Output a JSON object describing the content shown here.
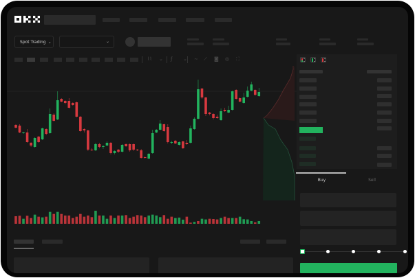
{
  "header": {
    "logo": "OKX",
    "nav_items": 5
  },
  "market_bar": {
    "mode_dropdown": "Spot Trading",
    "pair_dropdown": ""
  },
  "orderbook": {
    "view_icons": [
      "orderbook-both-icon",
      "orderbook-bids-icon",
      "orderbook-asks-icon"
    ]
  },
  "order_form": {
    "tabs": [
      {
        "label": "Buy",
        "active": true
      },
      {
        "label": "Sell",
        "active": false
      }
    ],
    "slider_percent": 0,
    "slider_stops": [
      0,
      25,
      50,
      75,
      100
    ]
  },
  "colors": {
    "up": "#22b35e",
    "down": "#d7393f",
    "background": "#181818",
    "panel": "#1d1d1d"
  },
  "chart_data": {
    "type": "candlestick",
    "title": "",
    "candles": [
      [
        119,
        120,
        114,
        115
      ],
      [
        118,
        120,
        107,
        108
      ],
      [
        107,
        109,
        106,
        108
      ],
      [
        108,
        113,
        93,
        94
      ],
      [
        93,
        94,
        87,
        89
      ],
      [
        87,
        101,
        86,
        100
      ],
      [
        102,
        103,
        93,
        94
      ],
      [
        98,
        115,
        97,
        114
      ],
      [
        113,
        114,
        104,
        106
      ],
      [
        107,
        143,
        106,
        135
      ],
      [
        134,
        136,
        124,
        125
      ],
      [
        127,
        168,
        126,
        155
      ],
      [
        157,
        158,
        152,
        153
      ],
      [
        154,
        155,
        149,
        151
      ],
      [
        154,
        158,
        143,
        144
      ],
      [
        151,
        152,
        147,
        148
      ],
      [
        152,
        153,
        130,
        131
      ],
      [
        131,
        132,
        109,
        110
      ],
      [
        113,
        114,
        108,
        111
      ],
      [
        111,
        112,
        81,
        83
      ],
      [
        83,
        85,
        81,
        82
      ],
      [
        82,
        93,
        81,
        91
      ],
      [
        91,
        93,
        85,
        87
      ],
      [
        87,
        90,
        84,
        88
      ],
      [
        89,
        95,
        88,
        93
      ],
      [
        93,
        94,
        76,
        78
      ],
      [
        78,
        82,
        76,
        81
      ],
      [
        83,
        84,
        78,
        80
      ],
      [
        80,
        91,
        79,
        90
      ],
      [
        91,
        92,
        87,
        88
      ],
      [
        91,
        92,
        80,
        82
      ],
      [
        91,
        92,
        81,
        83
      ],
      [
        83,
        84,
        81,
        82
      ],
      [
        82,
        84,
        70,
        71
      ],
      [
        72,
        73,
        70,
        71
      ],
      [
        70,
        78,
        69,
        77
      ],
      [
        78,
        112,
        77,
        107
      ],
      [
        108,
        113,
        107,
        112
      ],
      [
        112,
        126,
        111,
        121
      ],
      [
        120,
        121,
        109,
        110
      ],
      [
        116,
        120,
        92,
        94
      ],
      [
        93,
        96,
        91,
        94
      ],
      [
        96,
        97,
        91,
        92
      ],
      [
        90,
        95,
        89,
        94
      ],
      [
        95,
        96,
        84,
        85
      ],
      [
        93,
        97,
        90,
        91
      ],
      [
        93,
        118,
        92,
        114
      ],
      [
        113,
        130,
        112,
        128
      ],
      [
        128,
        185,
        127,
        171
      ],
      [
        172,
        173,
        157,
        159
      ],
      [
        159,
        160,
        132,
        135
      ],
      [
        137,
        138,
        133,
        135
      ],
      [
        135,
        136,
        127,
        129
      ],
      [
        131,
        134,
        128,
        129
      ],
      [
        126,
        143,
        125,
        139
      ],
      [
        141,
        144,
        138,
        139
      ],
      [
        137,
        147,
        136,
        141
      ],
      [
        141,
        169,
        140,
        168
      ],
      [
        170,
        171,
        156,
        157
      ],
      [
        158,
        159,
        152,
        153
      ],
      [
        151,
        166,
        150,
        159
      ],
      [
        160,
        175,
        159,
        169
      ],
      [
        169,
        182,
        168,
        178
      ],
      [
        170,
        171,
        161,
        163
      ],
      [
        161,
        173,
        160,
        167
      ]
    ],
    "candle_format": [
      "open",
      "high",
      "low",
      "close"
    ],
    "volume": [
      33,
      35,
      22,
      35,
      25,
      40,
      31,
      28,
      31,
      52,
      43,
      52,
      43,
      36,
      36,
      25,
      31,
      43,
      31,
      36,
      29,
      57,
      36,
      36,
      22,
      36,
      25,
      36,
      36,
      38,
      25,
      31,
      38,
      36,
      29,
      36,
      40,
      36,
      29,
      38,
      22,
      31,
      25,
      27,
      18,
      31,
      5,
      8,
      12,
      22,
      19,
      22,
      21,
      19,
      25,
      31,
      25,
      25,
      25,
      31,
      20,
      19,
      12,
      6,
      12
    ],
    "volume_sides": "rrgrrgrgrgrgrrrrrrrrrgrggrgrgrrrrrrggggrrrgggrrgrggrrrgrrgrggggrg",
    "reference_price": 168,
    "grid": false,
    "legend": "none"
  }
}
